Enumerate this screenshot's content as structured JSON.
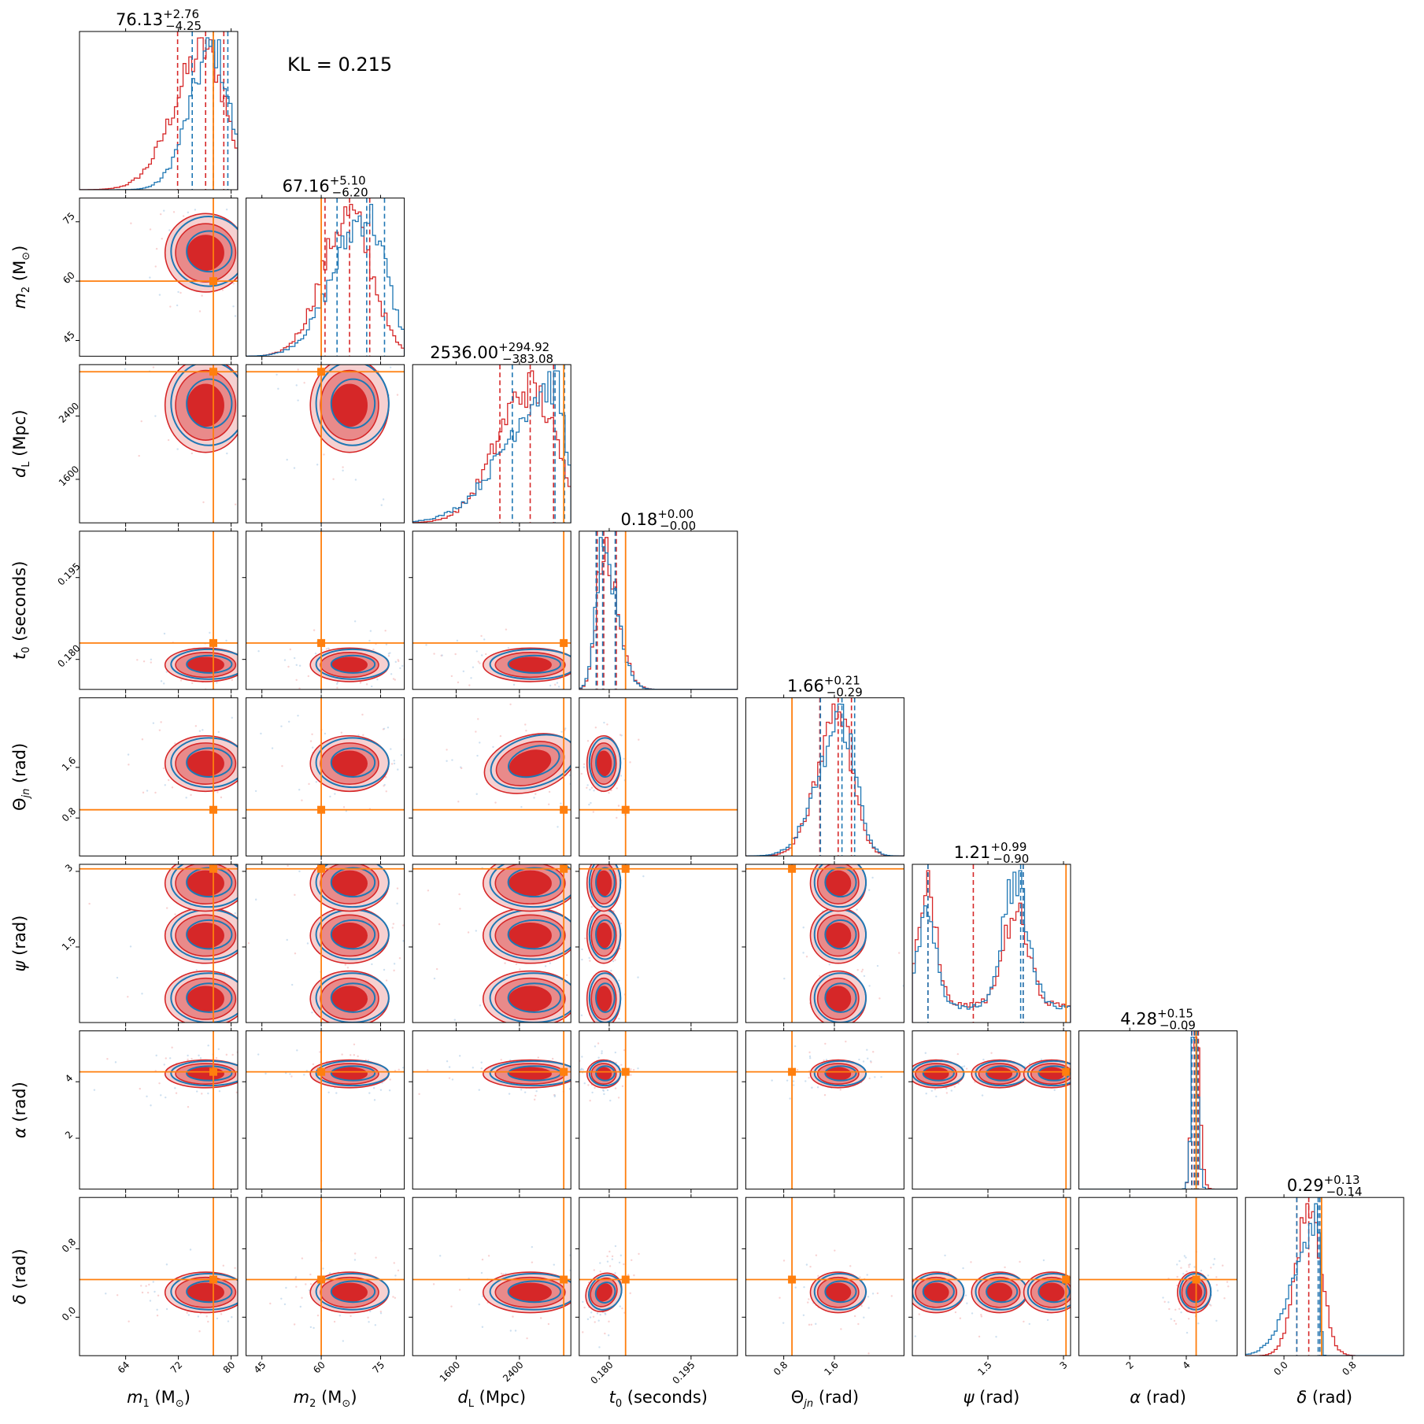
{
  "figure": {
    "kl_text": "KL = 0.215",
    "colors": {
      "red": "#d62728",
      "blue": "#1f77b4",
      "orange": "#ff7f0e",
      "red_fill_light": "#f6d0d0",
      "red_fill_mid": "#e98a8a"
    }
  },
  "chart_data": {
    "type": "corner",
    "parameters": [
      {
        "label": "m1 (M⊙)",
        "label_html": "<tspan font-style='italic'>m</tspan><tspan font-size='13' dy='5'>1</tspan><tspan dy='-5'> (M</tspan><tspan font-size='13' dy='5'>⊙</tspan><tspan dy='-5'>)</tspan>",
        "range": [
          57,
          81
        ],
        "ticks": [
          64,
          72,
          80
        ],
        "truth": 77.3,
        "title": {
          "value": "76.13",
          "plus": "+2.76",
          "minus": "−4.25"
        },
        "median": 76.13,
        "lo": 71.88,
        "hi": 78.89,
        "median_b": 77.3,
        "lo_b": 74.1,
        "hi_b": 79.5
      },
      {
        "label": "m2 (M⊙)",
        "label_html": "<tspan font-style='italic'>m</tspan><tspan font-size='13' dy='5'>2</tspan><tspan dy='-5'> (M</tspan><tspan font-size='13' dy='5'>⊙</tspan><tspan dy='-5'>)</tspan>",
        "range": [
          41,
          81
        ],
        "ticks": [
          45,
          60,
          75
        ],
        "truth": 60,
        "title": {
          "value": "67.16",
          "plus": "+5.10",
          "minus": "−6.20"
        },
        "median": 67.16,
        "lo": 60.96,
        "hi": 72.26,
        "median_b": 71.5,
        "lo_b": 64.0,
        "hi_b": 76.0
      },
      {
        "label": "dL (Mpc)",
        "label_html": "<tspan font-style='italic'>d</tspan><tspan font-size='13' dy='5'>L</tspan><tspan dy='-5'> (Mpc)</tspan>",
        "range": [
          1050,
          3050
        ],
        "ticks": [
          1600,
          2400
        ],
        "truth": 2960,
        "title": {
          "value": "2536.00",
          "plus": "+294.92",
          "minus": "−383.08"
        },
        "median": 2536,
        "lo": 2153,
        "hi": 2831,
        "median_b": 2850,
        "lo_b": 2310,
        "hi_b": 2970
      },
      {
        "label": "t0 (seconds)",
        "label_html": "<tspan font-style='italic'>t</tspan><tspan font-size='13' dy='5'>0</tspan><tspan dy='-5'> (seconds)</tspan>",
        "range": [
          0.1745,
          0.2035
        ],
        "ticks": [
          0.18,
          0.195
        ],
        "tick_labels": [
          "0.180",
          "0.195"
        ],
        "truth": 0.183,
        "title": {
          "value": "0.18",
          "plus": "+0.00",
          "minus": "−0.00"
        },
        "median": 0.179,
        "lo": 0.1778,
        "hi": 0.1813,
        "median_b": 0.1788,
        "lo_b": 0.1776,
        "hi_b": 0.1811
      },
      {
        "label": "Θjn (rad)",
        "label_html": "Θ<tspan font-size='13' dy='5' font-style='italic'>jn</tspan><tspan dy='-5'> (rad)</tspan>",
        "range": [
          0.2,
          2.7
        ],
        "ticks": [
          0.8,
          1.6
        ],
        "truth": 0.93,
        "title": {
          "value": "1.66",
          "plus": "+0.21",
          "minus": "−0.29"
        },
        "median": 1.66,
        "lo": 1.37,
        "hi": 1.87,
        "median_b": 1.72,
        "lo_b": 1.38,
        "hi_b": 1.92
      },
      {
        "label": "ψ (rad)",
        "label_html": "<tspan font-style='italic'>ψ</tspan> (rad)",
        "range": [
          0,
          3.14
        ],
        "ticks": [
          1.5,
          3.0
        ],
        "truth": 3.05,
        "title": {
          "value": "1.21",
          "plus": "+0.99",
          "minus": "−0.90"
        },
        "median": 1.21,
        "lo": 0.31,
        "hi": 2.2,
        "median_b": 2.15,
        "lo_b": 0.31,
        "hi_b": 2.2
      },
      {
        "label": "α (rad)",
        "label_html": "<tspan font-style='italic'>α</tspan> (rad)",
        "range": [
          0.2,
          5.8
        ],
        "ticks": [
          2,
          4
        ],
        "truth": 4.35,
        "title": {
          "value": "4.28",
          "plus": "+0.15",
          "minus": "−0.09"
        },
        "median": 4.28,
        "lo": 4.19,
        "hi": 4.43,
        "median_b": 4.3,
        "lo_b": 4.2,
        "hi_b": 4.4
      },
      {
        "label": "δ (rad)",
        "label_html": "<tspan font-style='italic'>δ</tspan> (rad)",
        "range": [
          -0.45,
          1.4
        ],
        "ticks": [
          0.0,
          0.8
        ],
        "tick_labels": [
          "0.0",
          "0.8"
        ],
        "truth": 0.44,
        "title": {
          "value": "0.29",
          "plus": "+0.13",
          "minus": "−0.14"
        },
        "median": 0.29,
        "lo": 0.15,
        "hi": 0.42,
        "median_b": 0.4,
        "lo_b": 0.15,
        "hi_b": 0.42
      }
    ],
    "truth_color": "#ff7f0e",
    "series": [
      {
        "color": "#d62728"
      },
      {
        "color": "#1f77b4"
      }
    ]
  }
}
